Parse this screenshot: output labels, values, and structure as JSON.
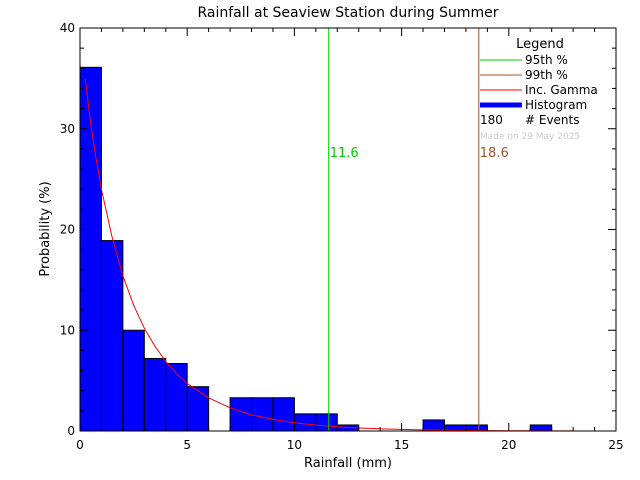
{
  "chart_data": {
    "type": "bar",
    "title": "Rainfall at Seaview Station during Summer",
    "xlabel": "Rainfall (mm)",
    "ylabel": "Probability (%)",
    "xlim": [
      0,
      25
    ],
    "ylim": [
      0,
      40
    ],
    "x_ticks": [
      0,
      5,
      10,
      15,
      20,
      25
    ],
    "y_ticks": [
      0,
      10,
      20,
      30,
      40
    ],
    "histogram": {
      "bin_width": 1,
      "bins": [
        {
          "x0": 0,
          "x1": 1,
          "value": 36.1
        },
        {
          "x0": 1,
          "x1": 2,
          "value": 18.9
        },
        {
          "x0": 2,
          "x1": 3,
          "value": 10.0
        },
        {
          "x0": 3,
          "x1": 4,
          "value": 7.2
        },
        {
          "x0": 4,
          "x1": 5,
          "value": 6.7
        },
        {
          "x0": 5,
          "x1": 6,
          "value": 4.4
        },
        {
          "x0": 6,
          "x1": 7,
          "value": 0
        },
        {
          "x0": 7,
          "x1": 8,
          "value": 3.3
        },
        {
          "x0": 8,
          "x1": 9,
          "value": 3.3
        },
        {
          "x0": 9,
          "x1": 10,
          "value": 3.3
        },
        {
          "x0": 10,
          "x1": 11,
          "value": 1.7
        },
        {
          "x0": 11,
          "x1": 12,
          "value": 1.7
        },
        {
          "x0": 12,
          "x1": 13,
          "value": 0.6
        },
        {
          "x0": 13,
          "x1": 14,
          "value": 0
        },
        {
          "x0": 14,
          "x1": 15,
          "value": 0
        },
        {
          "x0": 15,
          "x1": 16,
          "value": 0
        },
        {
          "x0": 16,
          "x1": 17,
          "value": 1.1
        },
        {
          "x0": 17,
          "x1": 18,
          "value": 0.6
        },
        {
          "x0": 18,
          "x1": 19,
          "value": 0.6
        },
        {
          "x0": 19,
          "x1": 20,
          "value": 0
        },
        {
          "x0": 20,
          "x1": 21,
          "value": 0
        },
        {
          "x0": 21,
          "x1": 22,
          "value": 0.6
        }
      ]
    },
    "gamma_curve": {
      "points": [
        [
          0.25,
          34.9
        ],
        [
          0.5,
          30.5
        ],
        [
          0.75,
          27.0
        ],
        [
          1.0,
          24.0
        ],
        [
          1.5,
          19.2
        ],
        [
          2.0,
          15.4
        ],
        [
          2.5,
          12.5
        ],
        [
          3.0,
          10.2
        ],
        [
          3.5,
          8.4
        ],
        [
          4.0,
          6.9
        ],
        [
          4.5,
          5.7
        ],
        [
          5.0,
          4.7
        ],
        [
          6.0,
          3.3
        ],
        [
          7.0,
          2.3
        ],
        [
          8.0,
          1.6
        ],
        [
          9.0,
          1.15
        ],
        [
          10.0,
          0.82
        ],
        [
          11.0,
          0.59
        ],
        [
          12.0,
          0.42
        ],
        [
          13.0,
          0.3
        ],
        [
          14.0,
          0.22
        ],
        [
          15.0,
          0.16
        ],
        [
          16.0,
          0.11
        ],
        [
          17.0,
          0.08
        ],
        [
          18.0,
          0.06
        ],
        [
          19.0,
          0.04
        ],
        [
          20.0,
          0.03
        ],
        [
          21.0,
          0.02
        ],
        [
          22.0,
          0.01
        ],
        [
          23.0,
          0.01
        ]
      ]
    },
    "percentiles": [
      {
        "name": "95th %",
        "x": 11.6,
        "label": "11.6",
        "color": "#00cc00"
      },
      {
        "name": "99th %",
        "x": 18.6,
        "label": "18.6",
        "color": "#a0522d"
      }
    ],
    "legend": {
      "title": "Legend",
      "placement": "top-right",
      "entries": [
        {
          "label": "95th %",
          "color": "#00cc00",
          "style": "line"
        },
        {
          "label": "99th %",
          "color": "#a0522d",
          "style": "line"
        },
        {
          "label": "Inc. Gamma",
          "color": "#ff0000",
          "style": "line"
        },
        {
          "label": "Histogram",
          "color": "#0000ff",
          "style": "thick"
        }
      ],
      "events_count": "180",
      "events_label": "# Events",
      "made_on": "Made on 29 May 2025"
    },
    "colors": {
      "bar": "#0000ff",
      "bar_edge": "#000000",
      "curve": "#ff0000",
      "axis": "#000000"
    }
  }
}
